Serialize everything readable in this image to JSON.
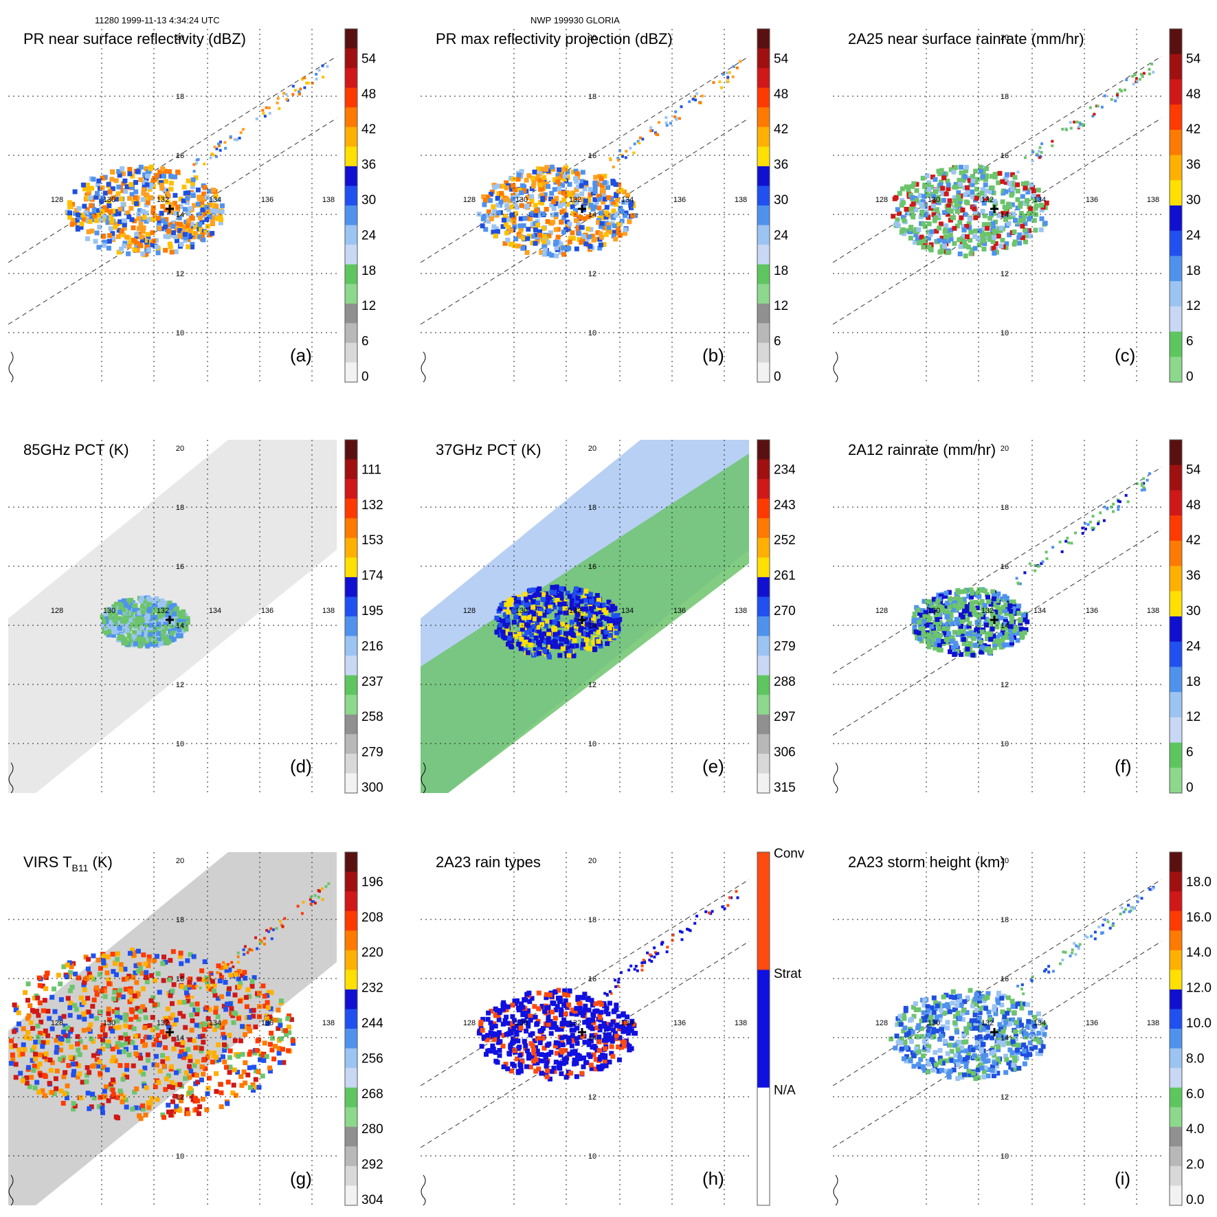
{
  "header": {
    "orbit_time": "11280 1999-11-13 4:34:24 UTC",
    "storm": "NWP 199930 GLORIA"
  },
  "map": {
    "lon_ticks": [
      "128",
      "130",
      "132",
      "134",
      "136",
      "138"
    ],
    "lat_ticks": [
      "10",
      "12",
      "14",
      "16",
      "18",
      "20"
    ],
    "center_marker": "storm-center-cross"
  },
  "panels": [
    {
      "id": "a",
      "title": "PR near surface reflectivity (dBZ)",
      "letter": "(a)",
      "field": "reflectivity",
      "colorbar": {
        "labels": [
          "54",
          "48",
          "42",
          "36",
          "30",
          "24",
          "18",
          "12",
          "6",
          "0"
        ],
        "colors": [
          "#5a1010",
          "#a01010",
          "#d01818",
          "#ff3a00",
          "#ff7a00",
          "#ffb000",
          "#ffe000",
          "#1010d0",
          "#2050f0",
          "#4f92ee",
          "#9cc4f2",
          "#c8d8f4",
          "#5ec65e",
          "#8cd88c",
          "#909090",
          "#b8b8b8",
          "#d8d8d8",
          "#f2f2f2"
        ]
      }
    },
    {
      "id": "b",
      "title": "PR max reflectivity projection (dBZ)",
      "letter": "(b)",
      "field": "reflectivity",
      "colorbar": {
        "labels": [
          "54",
          "48",
          "42",
          "36",
          "30",
          "24",
          "18",
          "12",
          "6",
          "0"
        ],
        "colors": [
          "#5a1010",
          "#a01010",
          "#d01818",
          "#ff3a00",
          "#ff7a00",
          "#ffb000",
          "#ffe000",
          "#1010d0",
          "#2050f0",
          "#4f92ee",
          "#9cc4f2",
          "#c8d8f4",
          "#5ec65e",
          "#8cd88c",
          "#909090",
          "#b8b8b8",
          "#d8d8d8",
          "#f2f2f2"
        ]
      }
    },
    {
      "id": "c",
      "title": "2A25 near surface rainrate (mm/hr)",
      "letter": "(c)",
      "field": "rain",
      "colorbar": {
        "labels": [
          "54",
          "48",
          "42",
          "36",
          "30",
          "24",
          "18",
          "12",
          "6",
          "0"
        ],
        "colors": [
          "#5a1010",
          "#a01010",
          "#d01818",
          "#ff3a00",
          "#ff7a00",
          "#ffb000",
          "#ffe000",
          "#1010d0",
          "#2050f0",
          "#4f92ee",
          "#9cc4f2",
          "#c8d8f4",
          "#5ec65e",
          "#8cd88c"
        ]
      }
    },
    {
      "id": "d",
      "title": "85GHz PCT (K)",
      "letter": "(d)",
      "field": "pct85",
      "colorbar": {
        "labels": [
          "111",
          "132",
          "153",
          "174",
          "195",
          "216",
          "237",
          "258",
          "279",
          "300"
        ],
        "colors": [
          "#5a1010",
          "#a01010",
          "#d01818",
          "#ff3a00",
          "#ff7a00",
          "#ffb000",
          "#ffe000",
          "#1010d0",
          "#2050f0",
          "#4f92ee",
          "#9cc4f2",
          "#c8d8f4",
          "#5ec65e",
          "#8cd88c",
          "#909090",
          "#b8b8b8",
          "#d8d8d8",
          "#f2f2f2"
        ]
      }
    },
    {
      "id": "e",
      "title": "37GHz PCT (K)",
      "letter": "(e)",
      "field": "pct37",
      "colorbar": {
        "labels": [
          "234",
          "243",
          "252",
          "261",
          "270",
          "279",
          "288",
          "297",
          "306",
          "315"
        ],
        "colors": [
          "#5a1010",
          "#a01010",
          "#d01818",
          "#ff3a00",
          "#ff7a00",
          "#ffb000",
          "#ffe000",
          "#1010d0",
          "#2050f0",
          "#4f92ee",
          "#9cc4f2",
          "#c8d8f4",
          "#5ec65e",
          "#8cd88c",
          "#909090",
          "#b8b8b8",
          "#d8d8d8",
          "#f2f2f2"
        ]
      }
    },
    {
      "id": "f",
      "title": "2A12 rainrate (mm/hr)",
      "letter": "(f)",
      "field": "rain12",
      "colorbar": {
        "labels": [
          "54",
          "48",
          "42",
          "36",
          "30",
          "24",
          "18",
          "12",
          "6",
          "0"
        ],
        "colors": [
          "#5a1010",
          "#a01010",
          "#d01818",
          "#ff3a00",
          "#ff7a00",
          "#ffb000",
          "#ffe000",
          "#1010d0",
          "#2050f0",
          "#4f92ee",
          "#9cc4f2",
          "#c8d8f4",
          "#5ec65e",
          "#8cd88c"
        ]
      }
    },
    {
      "id": "g",
      "title": "VIRS T",
      "title_sub": "B11",
      "title_tail": " (K)",
      "letter": "(g)",
      "field": "virs",
      "colorbar": {
        "labels": [
          "196",
          "208",
          "220",
          "232",
          "244",
          "256",
          "268",
          "280",
          "292",
          "304"
        ],
        "colors": [
          "#5a1010",
          "#a01010",
          "#d01818",
          "#ff3a00",
          "#ff7a00",
          "#ffb000",
          "#ffe000",
          "#1010d0",
          "#2050f0",
          "#4f92ee",
          "#9cc4f2",
          "#c8d8f4",
          "#5ec65e",
          "#8cd88c",
          "#909090",
          "#b8b8b8",
          "#d8d8d8",
          "#f2f2f2"
        ]
      }
    },
    {
      "id": "h",
      "title": "2A23 rain types",
      "letter": "(h)",
      "field": "types",
      "colorbar": {
        "labels": [
          "Conv",
          "Strat",
          "N/A"
        ],
        "colors": [
          "#ff4a10",
          "#1010e0",
          "#ffffff"
        ]
      }
    },
    {
      "id": "i",
      "title": "2A23 storm height (km)",
      "letter": "(i)",
      "field": "height",
      "colorbar": {
        "labels": [
          "18.0",
          "16.0",
          "14.0",
          "12.0",
          "10.0",
          "8.0",
          "6.0",
          "4.0",
          "2.0",
          "0.0"
        ],
        "colors": [
          "#5a1010",
          "#a01010",
          "#d01818",
          "#ff3a00",
          "#ff7a00",
          "#ffb000",
          "#ffe000",
          "#1010d0",
          "#2050f0",
          "#4f92ee",
          "#9cc4f2",
          "#c8d8f4",
          "#5ec65e",
          "#8cd88c",
          "#909090",
          "#b8b8b8",
          "#d8d8d8",
          "#f2f2f2"
        ]
      }
    }
  ]
}
